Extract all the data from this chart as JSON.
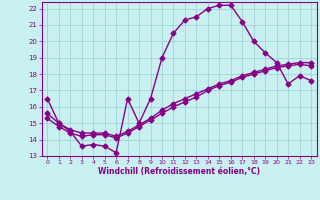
{
  "xlabel": "Windchill (Refroidissement éolien,°C)",
  "xlim": [
    -0.5,
    23.5
  ],
  "ylim": [
    13,
    22.4
  ],
  "xticks": [
    0,
    1,
    2,
    3,
    4,
    5,
    6,
    7,
    8,
    9,
    10,
    11,
    12,
    13,
    14,
    15,
    16,
    17,
    18,
    19,
    20,
    21,
    22,
    23
  ],
  "yticks": [
    13,
    14,
    15,
    16,
    17,
    18,
    19,
    20,
    21,
    22
  ],
  "bg_color": "#c8f0f0",
  "grid_color": "#a0d4d8",
  "line_color": "#880088",
  "line1_x": [
    0,
    1,
    2,
    3,
    4,
    5,
    6,
    7,
    8,
    9,
    10,
    11,
    12,
    13,
    14,
    15,
    16,
    17,
    18,
    19,
    20,
    21,
    22,
    23
  ],
  "line1_y": [
    16.5,
    15.0,
    14.5,
    13.6,
    13.7,
    13.6,
    13.2,
    16.5,
    15.0,
    16.5,
    19.0,
    20.5,
    21.3,
    21.5,
    22.0,
    22.2,
    22.2,
    21.2,
    20.0,
    19.3,
    18.7,
    17.4,
    17.9,
    17.6
  ],
  "line2_x": [
    0,
    1,
    2,
    3,
    4,
    5,
    6,
    7,
    8,
    9,
    10,
    11,
    12,
    13,
    14,
    15,
    16,
    17,
    18,
    19,
    20,
    21,
    22,
    23
  ],
  "line2_y": [
    15.6,
    15.0,
    14.6,
    14.4,
    14.4,
    14.4,
    14.2,
    14.5,
    14.9,
    15.3,
    15.8,
    16.2,
    16.5,
    16.8,
    17.1,
    17.4,
    17.6,
    17.9,
    18.1,
    18.3,
    18.5,
    18.6,
    18.7,
    18.7
  ],
  "line3_x": [
    0,
    1,
    2,
    3,
    4,
    5,
    6,
    7,
    8,
    9,
    10,
    11,
    12,
    13,
    14,
    15,
    16,
    17,
    18,
    19,
    20,
    21,
    22,
    23
  ],
  "line3_y": [
    15.3,
    14.8,
    14.4,
    14.2,
    14.3,
    14.3,
    14.1,
    14.4,
    14.8,
    15.2,
    15.6,
    16.0,
    16.3,
    16.6,
    17.0,
    17.3,
    17.5,
    17.8,
    18.0,
    18.2,
    18.4,
    18.5,
    18.6,
    18.5
  ]
}
